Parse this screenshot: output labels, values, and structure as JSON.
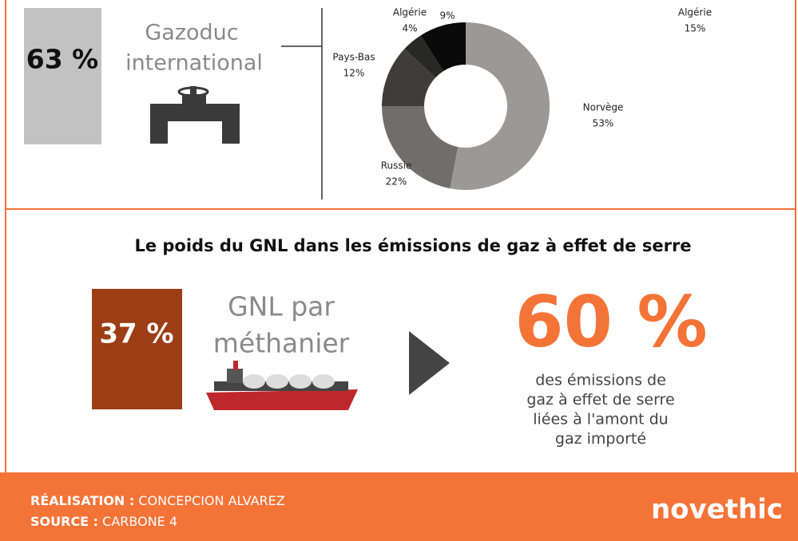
{
  "top": {
    "share": "63 %",
    "label_line1": "Gazoduc",
    "label_line2": "international"
  },
  "chart_data": {
    "type": "donut",
    "categories": [
      "Norvège",
      "Russie",
      "Pays-Bas",
      "Algérie",
      null
    ],
    "values": [
      53,
      22,
      12,
      4,
      9
    ],
    "value_labels": [
      "53%",
      "22%",
      "12%",
      "4%",
      "9%"
    ],
    "colors": [
      "#9b9997",
      "#706e6c",
      "#3e3d3b",
      "#282826",
      "#0a0a0a"
    ]
  },
  "right_fragment": {
    "label": "Algérie",
    "value": "15%"
  },
  "section": {
    "title": "Le poids du GNL dans les émissions de gaz à effet de serre",
    "share": "37 %",
    "label_line1": "GNL par",
    "label_line2": "méthanier",
    "big_number": "60 %",
    "caption": [
      "des émissions de",
      "gaz à effet de serre",
      "liées à l'amont du",
      "gaz importé"
    ]
  },
  "footer": {
    "credit_label": "RÉALISATION :",
    "credit": "CONCEPCION ALVAREZ",
    "source_label": "SOURCE :",
    "source": "CARBONE 4",
    "logo": "novethic"
  }
}
